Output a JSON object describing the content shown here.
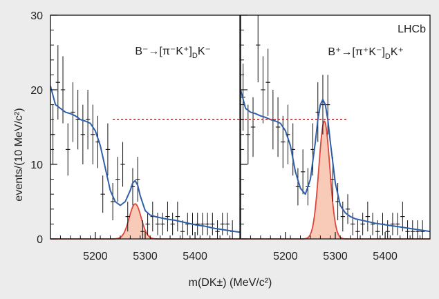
{
  "chart_data": {
    "type": "scatter",
    "figure_ylabel": "events/(10 MeV/c²)",
    "figure_xlabel": "m(DK±) (MeV/c²)",
    "colors": {
      "total_fit": "#2f5fa8",
      "signal_line": "#e0443a",
      "signal_fill": "#f8cbb8",
      "data_points": "#111111",
      "reference_line": "#e02020",
      "background": "#ececec",
      "plot_area": "#ffffff"
    },
    "shared_y_axis": {
      "ylim": [
        0,
        30
      ],
      "ticks": [
        0,
        10,
        20,
        30
      ]
    },
    "panels": [
      {
        "title": "B⁻→[π⁻K⁺]DK⁻",
        "title_parts": {
          "main": "B⁻→[π⁻K⁺]",
          "subscript": "D",
          "tail": "K⁻"
        },
        "xlim": [
          5110,
          5490
        ],
        "xticks": [
          5200,
          5300,
          5400
        ],
        "xticklabels": [
          "5200",
          "5300",
          "5400"
        ],
        "reference_line": {
          "y": 16,
          "x_range": [
            5235,
            5490
          ],
          "style": "dotted"
        },
        "data": [
          {
            "x": 5115,
            "y": 14,
            "err": 4
          },
          {
            "x": 5125,
            "y": 21,
            "err": 5
          },
          {
            "x": 5135,
            "y": 20,
            "err": 4.5
          },
          {
            "x": 5145,
            "y": 12,
            "err": 3.5
          },
          {
            "x": 5155,
            "y": 17,
            "err": 4
          },
          {
            "x": 5165,
            "y": 16,
            "err": 4
          },
          {
            "x": 5175,
            "y": 14,
            "err": 4
          },
          {
            "x": 5185,
            "y": 16,
            "err": 4
          },
          {
            "x": 5195,
            "y": 14,
            "err": 4
          },
          {
            "x": 5205,
            "y": 13,
            "err": 3.5
          },
          {
            "x": 5215,
            "y": 6,
            "err": 2.5
          },
          {
            "x": 5225,
            "y": 12,
            "err": 3.5
          },
          {
            "x": 5235,
            "y": 5,
            "err": 2.5
          },
          {
            "x": 5245,
            "y": 8,
            "err": 3
          },
          {
            "x": 5255,
            "y": 10,
            "err": 3
          },
          {
            "x": 5265,
            "y": 3,
            "err": 2
          },
          {
            "x": 5275,
            "y": 7,
            "err": 2.5
          },
          {
            "x": 5285,
            "y": 8,
            "err": 3
          },
          {
            "x": 5295,
            "y": 1,
            "err": 1.5
          },
          {
            "x": 5305,
            "y": 2,
            "err": 1.5
          },
          {
            "x": 5315,
            "y": 3,
            "err": 2
          },
          {
            "x": 5325,
            "y": 2,
            "err": 1.5
          },
          {
            "x": 5335,
            "y": 2,
            "err": 1.5
          },
          {
            "x": 5345,
            "y": 3,
            "err": 2
          },
          {
            "x": 5355,
            "y": 2,
            "err": 1.5
          },
          {
            "x": 5365,
            "y": 3,
            "err": 2
          },
          {
            "x": 5375,
            "y": 1,
            "err": 1.5
          },
          {
            "x": 5385,
            "y": 2,
            "err": 1.5
          },
          {
            "x": 5395,
            "y": 2,
            "err": 1.5
          },
          {
            "x": 5405,
            "y": 2,
            "err": 1.5
          },
          {
            "x": 5415,
            "y": 2,
            "err": 1.5
          },
          {
            "x": 5425,
            "y": 2,
            "err": 1.5
          },
          {
            "x": 5435,
            "y": 2,
            "err": 1.5
          },
          {
            "x": 5445,
            "y": 1,
            "err": 1.5
          },
          {
            "x": 5455,
            "y": 2,
            "err": 1.5
          },
          {
            "x": 5465,
            "y": 2,
            "err": 1.5
          },
          {
            "x": 5475,
            "y": 1,
            "err": 1.5
          }
        ],
        "total_fit": {
          "x": [
            5110,
            5120,
            5130,
            5140,
            5150,
            5160,
            5170,
            5180,
            5190,
            5200,
            5210,
            5220,
            5230,
            5240,
            5250,
            5260,
            5270,
            5275,
            5280,
            5285,
            5290,
            5300,
            5310,
            5320,
            5340,
            5360,
            5380,
            5400,
            5420,
            5440,
            5460,
            5480,
            5490
          ],
          "y": [
            20.5,
            18,
            17.5,
            17,
            16.8,
            16.5,
            16,
            15.8,
            15.5,
            14.5,
            12.5,
            9.5,
            6.5,
            5,
            4.5,
            5,
            6.5,
            7.5,
            7.8,
            7.2,
            5.8,
            3.8,
            3.2,
            3,
            2.7,
            2.5,
            2.2,
            1.9,
            1.7,
            1.4,
            1.2,
            1,
            0.9
          ]
        },
        "signal": {
          "mean": 5280,
          "amplitude": 4.7,
          "sigma": 12
        }
      },
      {
        "title": "B⁺→[π⁺K⁻]DK⁺",
        "title_parts": {
          "main": "B⁺→[π⁺K⁻]",
          "subscript": "D",
          "tail": "K⁺"
        },
        "experiment_label": "LHCb",
        "xlim": [
          5110,
          5490
        ],
        "xticks": [
          5200,
          5300,
          5400
        ],
        "xticklabels": [
          "5200",
          "5300",
          "5400"
        ],
        "reference_line": {
          "y": 16,
          "x_range": [
            5110,
            5325
          ],
          "style": "dotted"
        },
        "data": [
          {
            "x": 5115,
            "y": 19,
            "err": 4.5
          },
          {
            "x": 5125,
            "y": 14,
            "err": 4
          },
          {
            "x": 5135,
            "y": 15,
            "err": 4
          },
          {
            "x": 5145,
            "y": 26,
            "err": 5
          },
          {
            "x": 5155,
            "y": 20,
            "err": 4.5
          },
          {
            "x": 5165,
            "y": 21,
            "err": 4.5
          },
          {
            "x": 5175,
            "y": 16,
            "err": 4
          },
          {
            "x": 5185,
            "y": 15,
            "err": 4
          },
          {
            "x": 5195,
            "y": 13,
            "err": 3.5
          },
          {
            "x": 5205,
            "y": 14,
            "err": 4
          },
          {
            "x": 5215,
            "y": 12,
            "err": 3.5
          },
          {
            "x": 5225,
            "y": 7,
            "err": 2.5
          },
          {
            "x": 5235,
            "y": 9,
            "err": 3
          },
          {
            "x": 5245,
            "y": 7,
            "err": 2.5
          },
          {
            "x": 5255,
            "y": 12,
            "err": 3.5
          },
          {
            "x": 5265,
            "y": 17,
            "err": 4
          },
          {
            "x": 5275,
            "y": 18,
            "err": 4
          },
          {
            "x": 5285,
            "y": 18,
            "err": 4
          },
          {
            "x": 5295,
            "y": 8,
            "err": 3
          },
          {
            "x": 5305,
            "y": 5,
            "err": 2.5
          },
          {
            "x": 5315,
            "y": 3,
            "err": 2
          },
          {
            "x": 5325,
            "y": 4,
            "err": 2
          },
          {
            "x": 5335,
            "y": 2,
            "err": 1.5
          },
          {
            "x": 5345,
            "y": 1,
            "err": 1.5
          },
          {
            "x": 5355,
            "y": 2,
            "err": 1.5
          },
          {
            "x": 5365,
            "y": 3,
            "err": 2
          },
          {
            "x": 5375,
            "y": 2,
            "err": 1.5
          },
          {
            "x": 5385,
            "y": 1,
            "err": 1.5
          },
          {
            "x": 5395,
            "y": 2,
            "err": 1.5
          },
          {
            "x": 5405,
            "y": 1,
            "err": 1.5
          },
          {
            "x": 5415,
            "y": 2,
            "err": 1.5
          },
          {
            "x": 5425,
            "y": 2,
            "err": 1.5
          },
          {
            "x": 5435,
            "y": 3,
            "err": 2
          },
          {
            "x": 5445,
            "y": 1,
            "err": 1.5
          },
          {
            "x": 5455,
            "y": 1,
            "err": 1.5
          },
          {
            "x": 5465,
            "y": 1,
            "err": 1.5
          },
          {
            "x": 5475,
            "y": 1,
            "err": 1.5
          }
        ],
        "total_fit": {
          "x": [
            5110,
            5120,
            5130,
            5140,
            5150,
            5160,
            5170,
            5180,
            5190,
            5200,
            5210,
            5220,
            5230,
            5240,
            5250,
            5260,
            5265,
            5270,
            5275,
            5280,
            5285,
            5290,
            5300,
            5310,
            5320,
            5330,
            5340,
            5360,
            5380,
            5400,
            5420,
            5440,
            5460,
            5480,
            5490
          ],
          "y": [
            20,
            17.5,
            17,
            16.8,
            16.5,
            16.3,
            16,
            15.8,
            15.5,
            14.5,
            12.5,
            9,
            6.8,
            6,
            8,
            13,
            16,
            18,
            18.7,
            18,
            16,
            13,
            7.5,
            4.5,
            3.5,
            3,
            2.7,
            2.4,
            2.1,
            1.9,
            1.7,
            1.5,
            1.3,
            1.1,
            1
          ]
        },
        "signal": {
          "mean": 5278,
          "amplitude": 15.8,
          "sigma": 11
        }
      }
    ]
  }
}
